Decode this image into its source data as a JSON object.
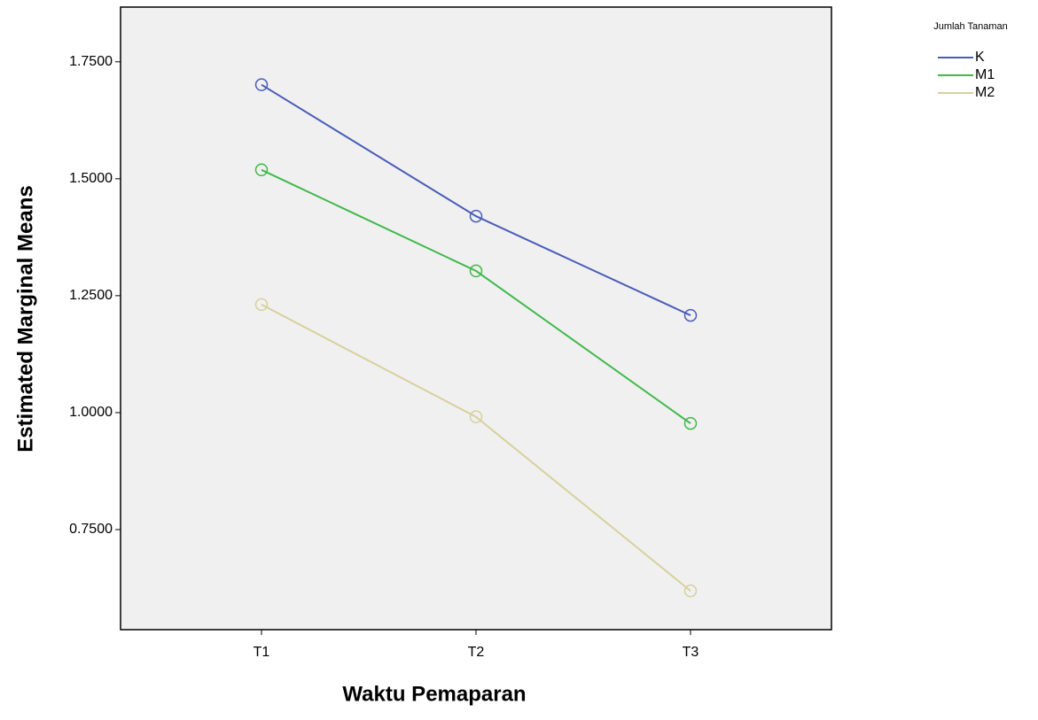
{
  "chart_data": {
    "type": "line",
    "x_label": "Waktu Pemaparan",
    "y_label": "Estimated Marginal Means",
    "categories": [
      "T1",
      "T2",
      "T3"
    ],
    "series": [
      {
        "name": "K",
        "color": "#4a5cb8",
        "values": [
          1.701,
          1.42,
          1.208
        ]
      },
      {
        "name": "M1",
        "color": "#3fb94a",
        "values": [
          1.519,
          1.303,
          0.977
        ]
      },
      {
        "name": "M2",
        "color": "#d8d09c",
        "values": [
          1.231,
          0.991,
          0.619
        ]
      }
    ],
    "legend_title": "Jumlah Tanaman",
    "legend": "right",
    "markers": "circle",
    "grid": false,
    "ylim": [
      0.536,
      1.867
    ],
    "yticks": [
      {
        "value": 0.75,
        "label": "0.7500"
      },
      {
        "value": 1.0,
        "label": "1.0000"
      },
      {
        "value": 1.25,
        "label": "1.2500"
      },
      {
        "value": 1.5,
        "label": "1.5000"
      },
      {
        "value": 1.75,
        "label": "1.7500"
      }
    ]
  }
}
